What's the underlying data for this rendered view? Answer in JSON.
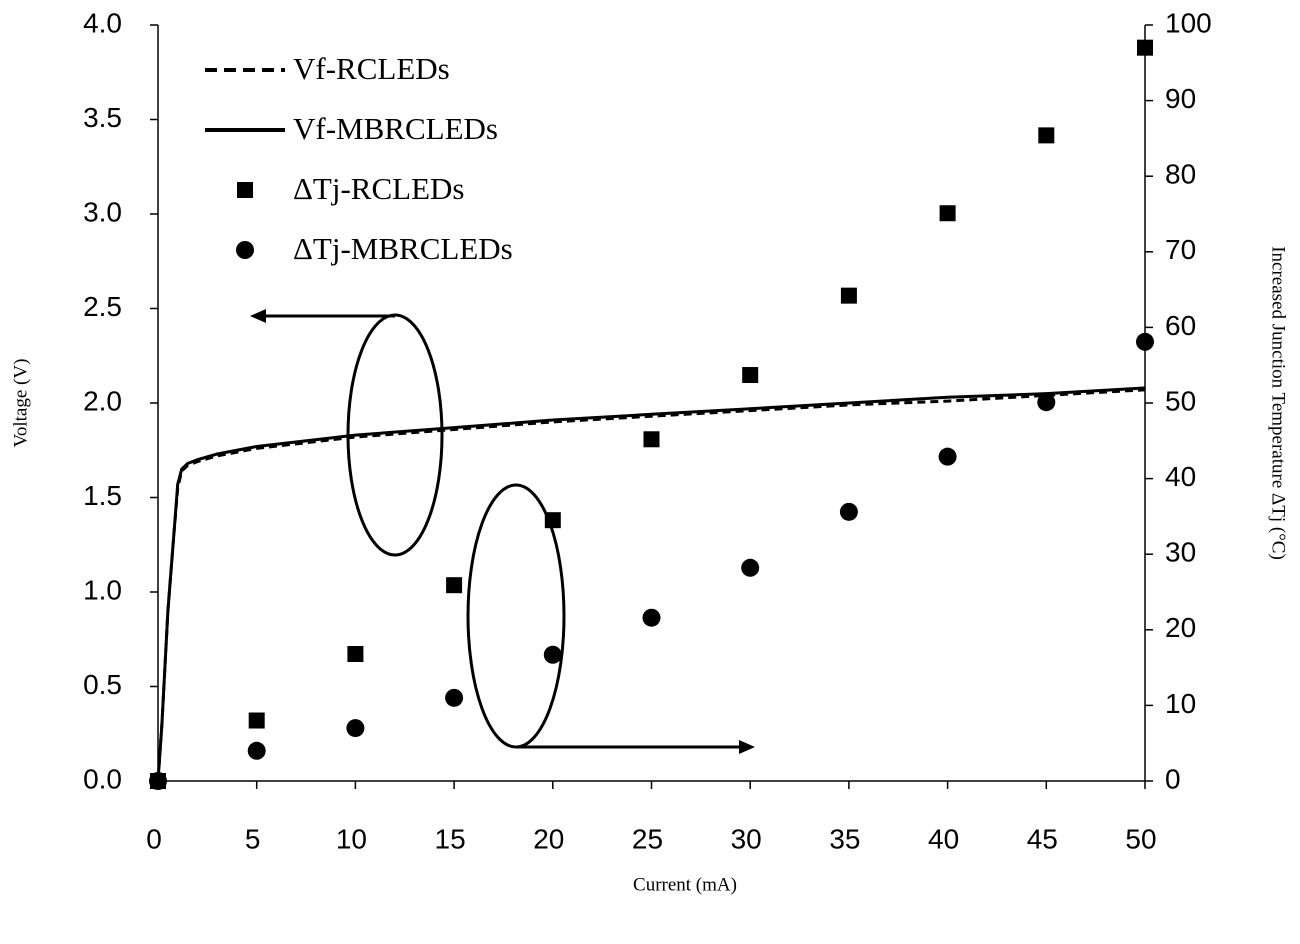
{
  "chart_data": {
    "type": "line",
    "xlabel": "Current (mA)",
    "ylabel": "Voltage (V)",
    "y2label": "Increased Junction Temperature ΔTj (°C)",
    "xlim": [
      0,
      50
    ],
    "xticks": [
      0,
      5,
      10,
      15,
      20,
      25,
      30,
      35,
      40,
      45,
      50
    ],
    "ylim": [
      0,
      4
    ],
    "yticks": [
      {
        "value": 0,
        "label": "0.0"
      },
      0.5,
      {
        "value": 1,
        "label": "1.0"
      },
      1.5,
      {
        "value": 2,
        "label": "2.0"
      },
      2.5,
      {
        "value": 3,
        "label": "3.0"
      },
      3.5,
      {
        "value": 4,
        "label": "4.0"
      }
    ],
    "y2lim": [
      0,
      100
    ],
    "y2ticks": [
      0,
      10,
      20,
      30,
      40,
      50,
      60,
      70,
      80,
      90,
      100
    ],
    "legend": "upper-left",
    "series": [
      {
        "name": "Vf-RCLEDs",
        "type": "line",
        "dash": true,
        "color": "#000000",
        "x": [
          0,
          0.2,
          0.5,
          0.8,
          1,
          1.2,
          1.5,
          2,
          3,
          5,
          10,
          15,
          20,
          25,
          30,
          35,
          40,
          45,
          50
        ],
        "values": [
          0,
          0.3,
          0.9,
          1.3,
          1.55,
          1.64,
          1.67,
          1.69,
          1.72,
          1.76,
          1.82,
          1.86,
          1.9,
          1.93,
          1.96,
          1.99,
          2.01,
          2.04,
          2.07
        ]
      },
      {
        "name": "Vf-MBRCLEDs",
        "type": "line",
        "dash": false,
        "color": "#000000",
        "x": [
          0,
          0.2,
          0.5,
          0.8,
          1,
          1.2,
          1.5,
          2,
          3,
          5,
          10,
          15,
          20,
          25,
          30,
          35,
          40,
          45,
          50
        ],
        "values": [
          0,
          0.3,
          0.9,
          1.3,
          1.57,
          1.65,
          1.68,
          1.7,
          1.73,
          1.77,
          1.83,
          1.87,
          1.91,
          1.94,
          1.97,
          2.0,
          2.03,
          2.05,
          2.08
        ]
      },
      {
        "name": "ΔTj-RCLEDs",
        "type": "scatter",
        "marker": "square",
        "axis": "y2",
        "color": "#000000",
        "x": [
          0,
          5,
          10,
          15,
          20,
          25,
          30,
          35,
          40,
          45,
          50
        ],
        "values": [
          0,
          8,
          16.8,
          25.9,
          34.5,
          45.2,
          53.7,
          64.2,
          75.1,
          85.4,
          97
        ]
      },
      {
        "name": "ΔTj-MBRCLEDs",
        "type": "scatter",
        "marker": "circle",
        "axis": "y2",
        "color": "#000000",
        "x": [
          0,
          5,
          10,
          15,
          20,
          25,
          30,
          35,
          40,
          45,
          50
        ],
        "values": [
          0,
          4,
          7,
          11,
          16.7,
          21.6,
          28.2,
          35.6,
          42.9,
          50.1,
          58.1
        ]
      }
    ]
  }
}
